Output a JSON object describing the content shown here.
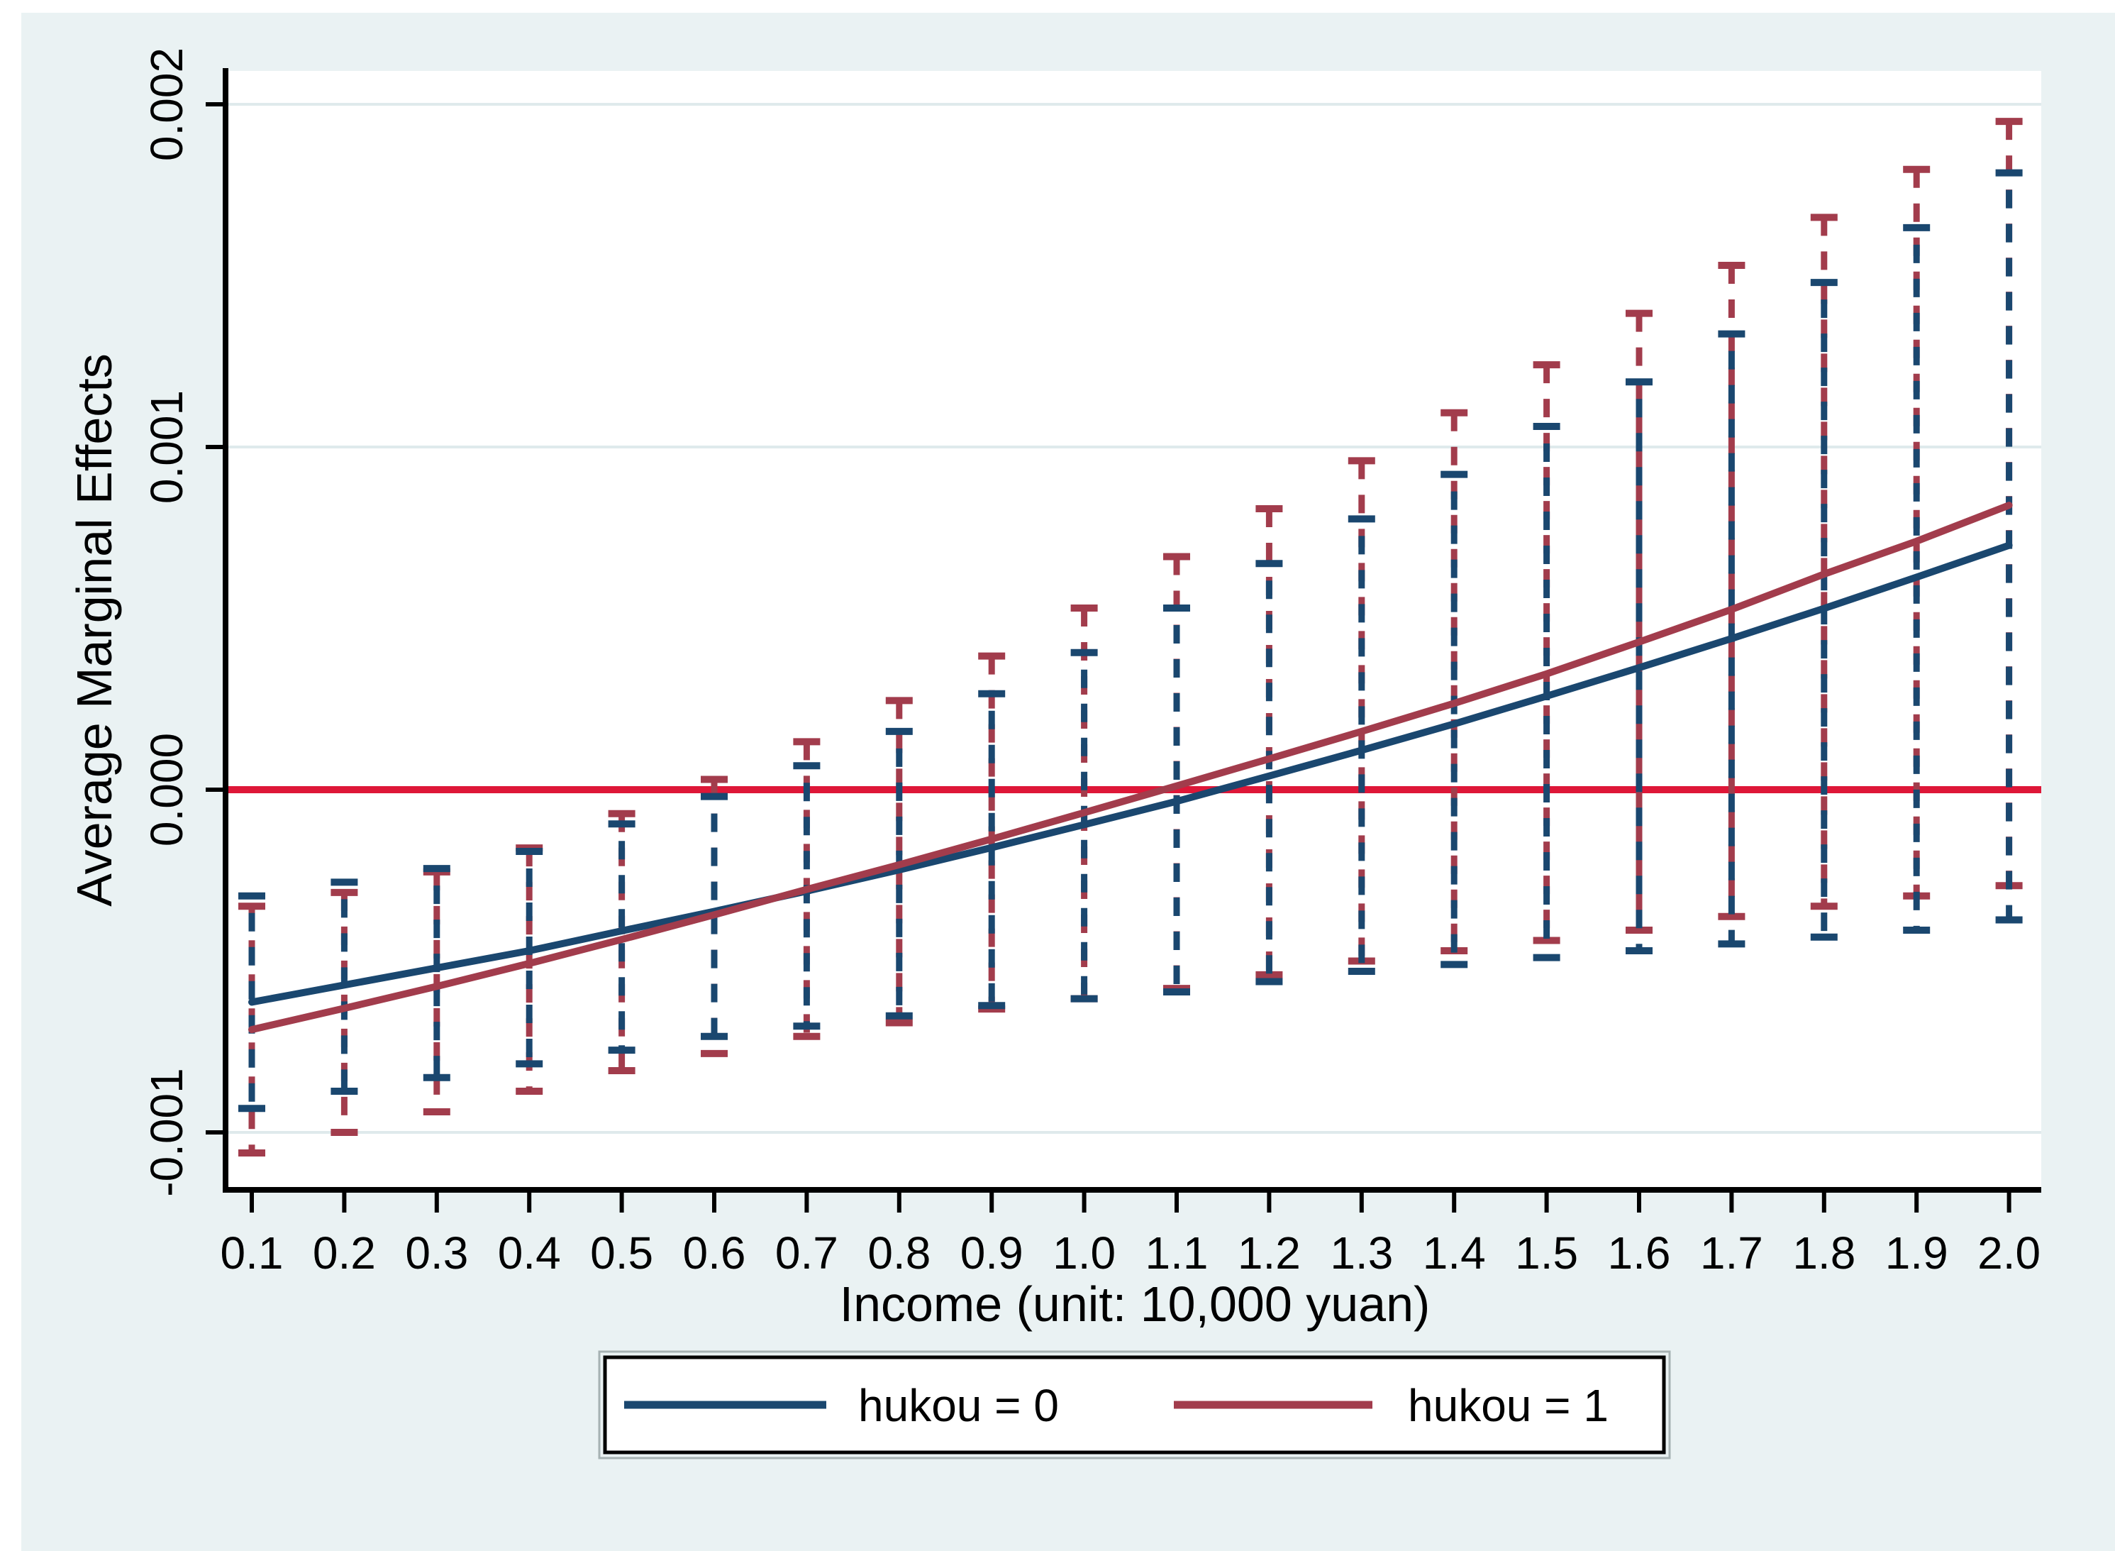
{
  "figure": {
    "background_color": "#eaf2f3",
    "plot_background_color": "#ffffff",
    "gridline_color": "#dfeaec",
    "axis_color": "#000000",
    "text_color": "#000000"
  },
  "chart_data": {
    "type": "line",
    "title": "",
    "xlabel": "Income (unit: 10,000 yuan)",
    "ylabel": "Average Marginal Effects",
    "x": [
      0.1,
      0.2,
      0.3,
      0.4,
      0.5,
      0.6,
      0.7,
      0.8,
      0.9,
      1.0,
      1.1,
      1.2,
      1.3,
      1.4,
      1.5,
      1.6,
      1.7,
      1.8,
      1.9,
      2.0
    ],
    "xtick_labels": [
      "0.1",
      "0.2",
      "0.3",
      "0.4",
      "0.5",
      "0.6",
      "0.7",
      "0.8",
      "0.9",
      "1.0",
      "1.1",
      "1.2",
      "1.3",
      "1.4",
      "1.5",
      "1.6",
      "1.7",
      "1.8",
      "1.9",
      "2.0"
    ],
    "ytick_values": [
      0.002,
      0.001,
      0.0,
      -0.001
    ],
    "ytick_labels": [
      "0.002",
      "0.001",
      "0.000",
      "-0.001"
    ],
    "xlim": [
      0.075,
      2.035
    ],
    "ylim": [
      -0.00117,
      0.0021
    ],
    "grid": true,
    "legend_position": "bottom",
    "reference_line": {
      "y": 0,
      "color": "#de1738"
    },
    "error_bar_style": "dashed vertical whiskers with solid caps",
    "series": [
      {
        "name": "hukou = 0",
        "color": "#1a476f",
        "line_style": "solid",
        "values": [
          -0.00062,
          -0.00057,
          -0.00052,
          -0.00047,
          -0.000412,
          -0.000355,
          -0.000296,
          -0.000234,
          -0.000169,
          -0.000102,
          -3.4e-05,
          4e-05,
          0.000115,
          0.000192,
          0.000273,
          0.000356,
          0.000441,
          0.000529,
          0.00062,
          0.000713
        ],
        "ci_high": [
          -0.00031,
          -0.00027,
          -0.00023,
          -0.00018,
          -0.0001,
          -2e-05,
          7e-05,
          0.00017,
          0.00028,
          0.0004,
          0.00053,
          0.00066,
          0.00079,
          0.00092,
          0.00106,
          0.00119,
          0.00133,
          0.00148,
          0.00164,
          0.0018
        ],
        "ci_low": [
          -0.00093,
          -0.00088,
          -0.00084,
          -0.0008,
          -0.00076,
          -0.00072,
          -0.00069,
          -0.00066,
          -0.00063,
          -0.00061,
          -0.00059,
          -0.00056,
          -0.00053,
          -0.00051,
          -0.00049,
          -0.00047,
          -0.00045,
          -0.00043,
          -0.00041,
          -0.00038
        ]
      },
      {
        "name": "hukou = 1",
        "color": "#a23c4c",
        "line_style": "solid",
        "values": [
          -0.0007,
          -0.000638,
          -0.000574,
          -0.000507,
          -0.000437,
          -0.000365,
          -0.000291,
          -0.000219,
          -0.000144,
          -6.7e-05,
          1.1e-05,
          9e-05,
          0.00017,
          0.000252,
          0.000338,
          0.000431,
          0.000526,
          0.000629,
          0.000725,
          0.00083
        ],
        "ci_high": [
          -0.00034,
          -0.0003,
          -0.00024,
          -0.00017,
          -7e-05,
          3e-05,
          0.00014,
          0.00026,
          0.00039,
          0.00053,
          0.00068,
          0.00082,
          0.00096,
          0.0011,
          0.00124,
          0.00139,
          0.00153,
          0.00167,
          0.00181,
          0.00195
        ],
        "ci_low": [
          -0.00106,
          -0.001,
          -0.00094,
          -0.00088,
          -0.00082,
          -0.00077,
          -0.00072,
          -0.00068,
          -0.00064,
          -0.00061,
          -0.00058,
          -0.00054,
          -0.0005,
          -0.00047,
          -0.00044,
          -0.00041,
          -0.00037,
          -0.00034,
          -0.00031,
          -0.00028
        ]
      }
    ]
  },
  "legend": {
    "border_color": "#000000",
    "outer_edge_color": "#a6b2b3",
    "background": "#ffffff"
  }
}
